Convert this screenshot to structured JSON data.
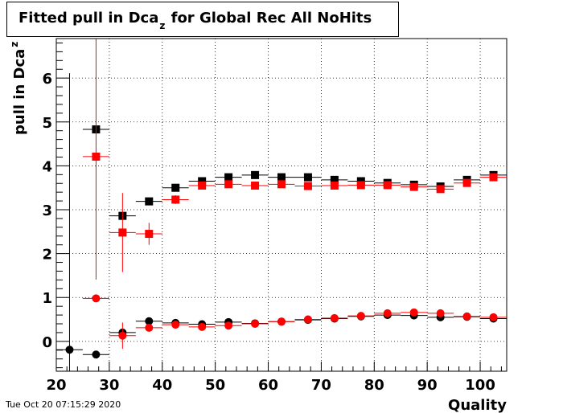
{
  "title": {
    "main": "Fitted pull in Dca",
    "sub": "z",
    "rest": " for Global Rec All NoHits"
  },
  "timestamp": "Tue Oct 20 07:15:29 2020",
  "chart_data": {
    "type": "scatter",
    "xlabel": "Quality",
    "ylabel": {
      "main": "pull in Dca",
      "sub": "z"
    },
    "xlim": [
      20,
      105
    ],
    "ylim": [
      -0.68,
      6.9
    ],
    "xticks": [
      20,
      30,
      40,
      50,
      60,
      70,
      80,
      90,
      100
    ],
    "yticks": [
      0,
      1,
      2,
      3,
      4,
      5,
      6
    ],
    "grid": true,
    "colors": {
      "black": "#000000",
      "red": "#ff0000"
    },
    "series": [
      {
        "marker": "square",
        "color": "#000000",
        "points": [
          {
            "x": 27.5,
            "y": 4.83,
            "yerr": 0
          },
          {
            "x": 32.5,
            "y": 2.86,
            "yerr": 0
          },
          {
            "x": 37.5,
            "y": 3.19,
            "yerr": 0.05
          },
          {
            "x": 42.5,
            "y": 3.5,
            "yerr": 0.03
          },
          {
            "x": 47.5,
            "y": 3.65,
            "yerr": 0.03
          },
          {
            "x": 52.5,
            "y": 3.74,
            "yerr": 0.03
          },
          {
            "x": 57.5,
            "y": 3.79,
            "yerr": 0.03
          },
          {
            "x": 62.5,
            "y": 3.74,
            "yerr": 0.03
          },
          {
            "x": 67.5,
            "y": 3.74,
            "yerr": 0.03
          },
          {
            "x": 72.5,
            "y": 3.68,
            "yerr": 0.03
          },
          {
            "x": 77.5,
            "y": 3.65,
            "yerr": 0.03
          },
          {
            "x": 82.5,
            "y": 3.61,
            "yerr": 0.03
          },
          {
            "x": 87.5,
            "y": 3.57,
            "yerr": 0.03
          },
          {
            "x": 92.5,
            "y": 3.53,
            "yerr": 0.03
          },
          {
            "x": 97.5,
            "y": 3.68,
            "yerr": 0.03
          },
          {
            "x": 102.5,
            "y": 3.79,
            "yerr": 0.03
          }
        ]
      },
      {
        "marker": "square",
        "color": "#ff0000",
        "points": [
          {
            "x": 27.5,
            "y": 4.21,
            "yerr": 2.8
          },
          {
            "x": 32.5,
            "y": 2.48,
            "yerr": 0.9
          },
          {
            "x": 37.5,
            "y": 2.45,
            "yerr": 0.25
          },
          {
            "x": 42.5,
            "y": 3.23,
            "yerr": 0.1
          },
          {
            "x": 47.5,
            "y": 3.55,
            "yerr": 0.05
          },
          {
            "x": 52.5,
            "y": 3.58,
            "yerr": 0.04
          },
          {
            "x": 57.5,
            "y": 3.55,
            "yerr": 0.04
          },
          {
            "x": 62.5,
            "y": 3.58,
            "yerr": 0.04
          },
          {
            "x": 67.5,
            "y": 3.54,
            "yerr": 0.04
          },
          {
            "x": 72.5,
            "y": 3.55,
            "yerr": 0.04
          },
          {
            "x": 77.5,
            "y": 3.56,
            "yerr": 0.04
          },
          {
            "x": 82.5,
            "y": 3.56,
            "yerr": 0.04
          },
          {
            "x": 87.5,
            "y": 3.52,
            "yerr": 0.04
          },
          {
            "x": 92.5,
            "y": 3.47,
            "yerr": 0.04
          },
          {
            "x": 97.5,
            "y": 3.61,
            "yerr": 0.04
          },
          {
            "x": 102.5,
            "y": 3.74,
            "yerr": 0.04
          }
        ]
      },
      {
        "marker": "circle",
        "color": "#000000",
        "points": [
          {
            "x": 22.5,
            "y": -0.19,
            "yerr": 6.3
          },
          {
            "x": 27.5,
            "y": -0.3,
            "yerr": 0
          },
          {
            "x": 32.5,
            "y": 0.2,
            "yerr": 0.08
          },
          {
            "x": 37.5,
            "y": 0.46,
            "yerr": 0.05
          },
          {
            "x": 42.5,
            "y": 0.42,
            "yerr": 0.03
          },
          {
            "x": 47.5,
            "y": 0.39,
            "yerr": 0.02
          },
          {
            "x": 52.5,
            "y": 0.44,
            "yerr": 0.02
          },
          {
            "x": 57.5,
            "y": 0.41,
            "yerr": 0.02
          },
          {
            "x": 62.5,
            "y": 0.45,
            "yerr": 0.02
          },
          {
            "x": 67.5,
            "y": 0.49,
            "yerr": 0.02
          },
          {
            "x": 72.5,
            "y": 0.52,
            "yerr": 0.02
          },
          {
            "x": 77.5,
            "y": 0.57,
            "yerr": 0.02
          },
          {
            "x": 82.5,
            "y": 0.6,
            "yerr": 0.02
          },
          {
            "x": 87.5,
            "y": 0.59,
            "yerr": 0.02
          },
          {
            "x": 92.5,
            "y": 0.55,
            "yerr": 0.02
          },
          {
            "x": 97.5,
            "y": 0.56,
            "yerr": 0.02
          },
          {
            "x": 102.5,
            "y": 0.52,
            "yerr": 0.02
          }
        ]
      },
      {
        "marker": "circle",
        "color": "#ff0000",
        "points": [
          {
            "x": 27.5,
            "y": 0.98,
            "yerr": 0
          },
          {
            "x": 32.5,
            "y": 0.13,
            "yerr": 0.3
          },
          {
            "x": 37.5,
            "y": 0.31,
            "yerr": 0.08
          },
          {
            "x": 42.5,
            "y": 0.38,
            "yerr": 0.05
          },
          {
            "x": 47.5,
            "y": 0.33,
            "yerr": 0.03
          },
          {
            "x": 52.5,
            "y": 0.36,
            "yerr": 0.03
          },
          {
            "x": 57.5,
            "y": 0.4,
            "yerr": 0.03
          },
          {
            "x": 62.5,
            "y": 0.45,
            "yerr": 0.03
          },
          {
            "x": 67.5,
            "y": 0.5,
            "yerr": 0.03
          },
          {
            "x": 72.5,
            "y": 0.53,
            "yerr": 0.03
          },
          {
            "x": 77.5,
            "y": 0.58,
            "yerr": 0.03
          },
          {
            "x": 82.5,
            "y": 0.64,
            "yerr": 0.03
          },
          {
            "x": 87.5,
            "y": 0.66,
            "yerr": 0.03
          },
          {
            "x": 92.5,
            "y": 0.64,
            "yerr": 0.03
          },
          {
            "x": 97.5,
            "y": 0.57,
            "yerr": 0.03
          },
          {
            "x": 102.5,
            "y": 0.55,
            "yerr": 0.03
          }
        ]
      }
    ]
  }
}
